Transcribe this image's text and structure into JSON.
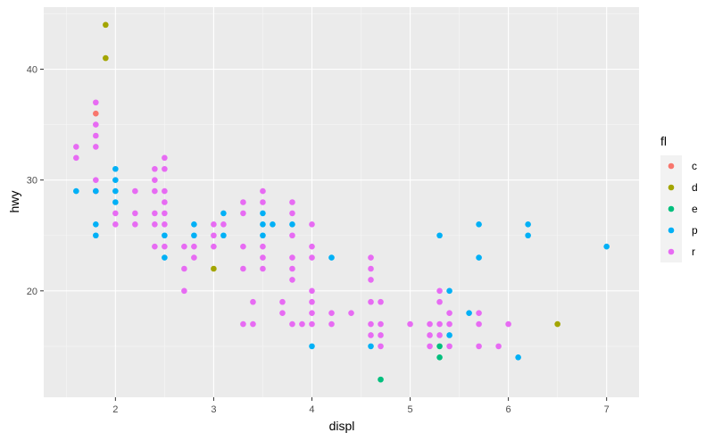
{
  "chart_data": {
    "type": "scatter",
    "title": "",
    "xlabel": "displ",
    "ylabel": "hwy",
    "xlim": [
      1.27,
      7.33
    ],
    "ylim": [
      10.4,
      45.6
    ],
    "xticks": [
      2,
      3,
      4,
      5,
      6,
      7
    ],
    "yticks": [
      20,
      30,
      40
    ],
    "grid": true,
    "legend": {
      "title": "fl",
      "placement": "right",
      "entries": [
        {
          "key": "c",
          "color": "#F8766D"
        },
        {
          "key": "d",
          "color": "#A3A500"
        },
        {
          "key": "e",
          "color": "#00BF7D"
        },
        {
          "key": "p",
          "color": "#00B0F6"
        },
        {
          "key": "r",
          "color": "#E76BF3"
        }
      ]
    },
    "series": [
      {
        "name": "c",
        "color": "#F8766D",
        "points": [
          [
            1.8,
            36
          ]
        ]
      },
      {
        "name": "d",
        "color": "#A3A500",
        "points": [
          [
            1.9,
            44
          ],
          [
            1.9,
            41
          ],
          [
            3.0,
            22
          ],
          [
            6.5,
            17
          ]
        ]
      },
      {
        "name": "e",
        "color": "#00BF7D",
        "points": [
          [
            4.7,
            12
          ],
          [
            5.3,
            15
          ],
          [
            5.3,
            14
          ]
        ]
      },
      {
        "name": "p",
        "color": "#00B0F6",
        "points": [
          [
            1.6,
            29
          ],
          [
            1.8,
            29
          ],
          [
            1.8,
            26
          ],
          [
            1.8,
            25
          ],
          [
            2.0,
            31
          ],
          [
            2.0,
            30
          ],
          [
            2.0,
            29
          ],
          [
            2.0,
            28
          ],
          [
            2.5,
            25
          ],
          [
            2.5,
            23
          ],
          [
            2.8,
            26
          ],
          [
            2.8,
            25
          ],
          [
            3.1,
            27
          ],
          [
            3.1,
            25
          ],
          [
            3.5,
            27
          ],
          [
            3.5,
            26
          ],
          [
            3.5,
            25
          ],
          [
            3.6,
            26
          ],
          [
            3.8,
            26
          ],
          [
            4.0,
            15
          ],
          [
            4.2,
            23
          ],
          [
            4.6,
            15
          ],
          [
            5.3,
            25
          ],
          [
            5.4,
            20
          ],
          [
            5.4,
            16
          ],
          [
            5.6,
            18
          ],
          [
            5.7,
            26
          ],
          [
            5.7,
            23
          ],
          [
            6.1,
            14
          ],
          [
            6.2,
            26
          ],
          [
            6.2,
            25
          ],
          [
            7.0,
            24
          ]
        ]
      },
      {
        "name": "r",
        "color": "#E76BF3",
        "points": [
          [
            1.6,
            33
          ],
          [
            1.6,
            32
          ],
          [
            1.8,
            37
          ],
          [
            1.8,
            35
          ],
          [
            1.8,
            34
          ],
          [
            1.8,
            33
          ],
          [
            1.8,
            30
          ],
          [
            1.8,
            29
          ],
          [
            2.0,
            27
          ],
          [
            2.0,
            26
          ],
          [
            2.2,
            29
          ],
          [
            2.2,
            27
          ],
          [
            2.2,
            26
          ],
          [
            2.4,
            31
          ],
          [
            2.4,
            30
          ],
          [
            2.4,
            29
          ],
          [
            2.4,
            27
          ],
          [
            2.4,
            26
          ],
          [
            2.4,
            24
          ],
          [
            2.5,
            32
          ],
          [
            2.5,
            31
          ],
          [
            2.5,
            29
          ],
          [
            2.5,
            28
          ],
          [
            2.5,
            27
          ],
          [
            2.5,
            26
          ],
          [
            2.5,
            24
          ],
          [
            2.7,
            24
          ],
          [
            2.7,
            22
          ],
          [
            2.7,
            20
          ],
          [
            2.8,
            24
          ],
          [
            2.8,
            23
          ],
          [
            3.0,
            26
          ],
          [
            3.0,
            25
          ],
          [
            3.0,
            24
          ],
          [
            3.1,
            26
          ],
          [
            3.3,
            28
          ],
          [
            3.3,
            27
          ],
          [
            3.3,
            24
          ],
          [
            3.3,
            22
          ],
          [
            3.3,
            17
          ],
          [
            3.4,
            19
          ],
          [
            3.4,
            17
          ],
          [
            3.5,
            29
          ],
          [
            3.5,
            28
          ],
          [
            3.5,
            24
          ],
          [
            3.5,
            23
          ],
          [
            3.5,
            22
          ],
          [
            3.7,
            19
          ],
          [
            3.7,
            18
          ],
          [
            3.8,
            28
          ],
          [
            3.8,
            27
          ],
          [
            3.8,
            25
          ],
          [
            3.8,
            23
          ],
          [
            3.8,
            22
          ],
          [
            3.8,
            21
          ],
          [
            3.8,
            17
          ],
          [
            3.9,
            17
          ],
          [
            4.0,
            26
          ],
          [
            4.0,
            24
          ],
          [
            4.0,
            23
          ],
          [
            4.0,
            20
          ],
          [
            4.0,
            19
          ],
          [
            4.0,
            18
          ],
          [
            4.0,
            17
          ],
          [
            4.2,
            18
          ],
          [
            4.2,
            17
          ],
          [
            4.4,
            18
          ],
          [
            4.6,
            23
          ],
          [
            4.6,
            22
          ],
          [
            4.6,
            21
          ],
          [
            4.6,
            19
          ],
          [
            4.6,
            17
          ],
          [
            4.6,
            16
          ],
          [
            4.7,
            19
          ],
          [
            4.7,
            17
          ],
          [
            4.7,
            16
          ],
          [
            4.7,
            15
          ],
          [
            5.0,
            17
          ],
          [
            5.2,
            17
          ],
          [
            5.2,
            16
          ],
          [
            5.2,
            15
          ],
          [
            5.3,
            20
          ],
          [
            5.3,
            19
          ],
          [
            5.3,
            17
          ],
          [
            5.3,
            16
          ],
          [
            5.4,
            18
          ],
          [
            5.4,
            17
          ],
          [
            5.4,
            15
          ],
          [
            5.7,
            18
          ],
          [
            5.7,
            17
          ],
          [
            5.7,
            15
          ],
          [
            5.9,
            15
          ],
          [
            6.0,
            17
          ]
        ]
      }
    ]
  }
}
